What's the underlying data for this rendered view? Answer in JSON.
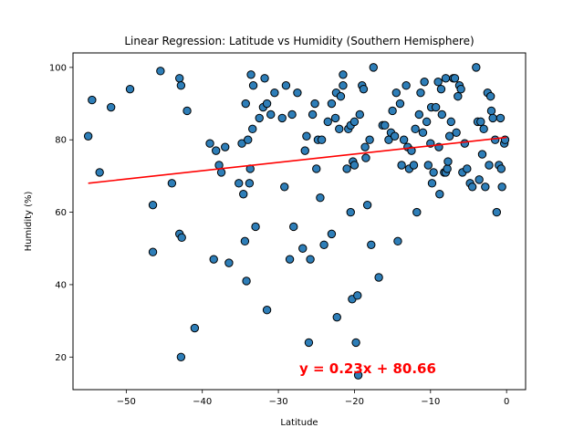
{
  "chart_data": {
    "type": "scatter",
    "title": "Linear Regression: Latitude vs Humidity (Southern Hemisphere)",
    "xlabel": "Latitude",
    "ylabel": "Humidity (%)",
    "xlim": [
      -57,
      2.5
    ],
    "ylim": [
      11,
      104
    ],
    "xticks": [
      -50,
      -40,
      -30,
      -20,
      -10,
      0
    ],
    "yticks": [
      20,
      40,
      60,
      80,
      100
    ],
    "grid": false,
    "point_color": "#2e7eb8",
    "point_edge_color": "#000000",
    "regression": {
      "slope": 0.23,
      "intercept": 80.66,
      "x_range": [
        -55,
        0
      ],
      "color": "#ff0000",
      "equation": "y = 0.23x + 80.66",
      "equation_color": "#ff0000"
    },
    "points": [
      [
        -55,
        81
      ],
      [
        -54.5,
        91
      ],
      [
        -53.5,
        71
      ],
      [
        -52,
        89
      ],
      [
        -49.5,
        94
      ],
      [
        -46.5,
        62
      ],
      [
        -46.5,
        49
      ],
      [
        -45.5,
        99
      ],
      [
        -44,
        68
      ],
      [
        -43,
        97
      ],
      [
        -43,
        54
      ],
      [
        -42.8,
        95
      ],
      [
        -42.7,
        53
      ],
      [
        -42.8,
        20
      ],
      [
        -42,
        88
      ],
      [
        -41,
        28
      ],
      [
        -39,
        79
      ],
      [
        -38.5,
        47
      ],
      [
        -38.2,
        77
      ],
      [
        -37.8,
        73
      ],
      [
        -37.5,
        71
      ],
      [
        -37,
        78
      ],
      [
        -36.5,
        46
      ],
      [
        -35.2,
        68
      ],
      [
        -34.8,
        79
      ],
      [
        -34.6,
        65
      ],
      [
        -34.4,
        52
      ],
      [
        -34.3,
        90
      ],
      [
        -34.2,
        41
      ],
      [
        -34,
        80
      ],
      [
        -33.8,
        68
      ],
      [
        -33.7,
        72
      ],
      [
        -33.6,
        98
      ],
      [
        -33.4,
        83
      ],
      [
        -33.3,
        95
      ],
      [
        -33,
        56
      ],
      [
        -32.5,
        86
      ],
      [
        -32,
        89
      ],
      [
        -31.8,
        97
      ],
      [
        -31.5,
        33
      ],
      [
        -31.5,
        90
      ],
      [
        -31,
        87
      ],
      [
        -30.5,
        93
      ],
      [
        -29.5,
        86
      ],
      [
        -29.2,
        67
      ],
      [
        -29,
        95
      ],
      [
        -28.5,
        47
      ],
      [
        -28.2,
        87
      ],
      [
        -28,
        56
      ],
      [
        -27.5,
        93
      ],
      [
        -26.8,
        50
      ],
      [
        -26.5,
        77
      ],
      [
        -26.3,
        81
      ],
      [
        -26,
        24
      ],
      [
        -25.8,
        47
      ],
      [
        -25.5,
        87
      ],
      [
        -25.2,
        90
      ],
      [
        -25,
        72
      ],
      [
        -24.8,
        80
      ],
      [
        -24.5,
        64
      ],
      [
        -24.3,
        80
      ],
      [
        -24,
        51
      ],
      [
        -23.5,
        85
      ],
      [
        -23,
        90
      ],
      [
        -23,
        54
      ],
      [
        -22.5,
        86
      ],
      [
        -22.4,
        93
      ],
      [
        -22.3,
        31
      ],
      [
        -22,
        83
      ],
      [
        -21.8,
        92
      ],
      [
        -21.5,
        95
      ],
      [
        -21.5,
        98
      ],
      [
        -21,
        72
      ],
      [
        -20.8,
        83
      ],
      [
        -20.5,
        60
      ],
      [
        -20.5,
        84
      ],
      [
        -20.3,
        36
      ],
      [
        -20.2,
        74
      ],
      [
        -20,
        73
      ],
      [
        -20,
        85
      ],
      [
        -19.8,
        24
      ],
      [
        -19.6,
        37
      ],
      [
        -19.5,
        15
      ],
      [
        -19.3,
        87
      ],
      [
        -19,
        95
      ],
      [
        -18.8,
        94
      ],
      [
        -18.6,
        78
      ],
      [
        -18.5,
        75
      ],
      [
        -18.3,
        62
      ],
      [
        -18,
        80
      ],
      [
        -17.8,
        51
      ],
      [
        -17.5,
        100
      ],
      [
        -16.8,
        42
      ],
      [
        -16.3,
        84
      ],
      [
        -16,
        84
      ],
      [
        -15.5,
        80
      ],
      [
        -15.2,
        82
      ],
      [
        -15,
        88
      ],
      [
        -14.7,
        81
      ],
      [
        -14.5,
        93
      ],
      [
        -14.3,
        52
      ],
      [
        -14,
        90
      ],
      [
        -13.8,
        73
      ],
      [
        -13.5,
        80
      ],
      [
        -13.2,
        95
      ],
      [
        -13,
        78
      ],
      [
        -12.8,
        72
      ],
      [
        -12.5,
        77
      ],
      [
        -12.2,
        73
      ],
      [
        -12,
        83
      ],
      [
        -11.8,
        60
      ],
      [
        -11.5,
        87
      ],
      [
        -11.3,
        93
      ],
      [
        -11,
        82
      ],
      [
        -10.8,
        96
      ],
      [
        -10.5,
        85
      ],
      [
        -10.3,
        73
      ],
      [
        -10,
        79
      ],
      [
        -9.9,
        89
      ],
      [
        -9.8,
        68
      ],
      [
        -9.6,
        71
      ],
      [
        -9.3,
        89
      ],
      [
        -9,
        96
      ],
      [
        -8.9,
        78
      ],
      [
        -8.8,
        65
      ],
      [
        -8.6,
        94
      ],
      [
        -8.5,
        87
      ],
      [
        -8.2,
        71
      ],
      [
        -8,
        97
      ],
      [
        -8,
        71
      ],
      [
        -7.8,
        72
      ],
      [
        -7.7,
        74
      ],
      [
        -7.5,
        81
      ],
      [
        -7.3,
        85
      ],
      [
        -7,
        97
      ],
      [
        -6.8,
        97
      ],
      [
        -6.6,
        82
      ],
      [
        -6.4,
        92
      ],
      [
        -6.2,
        95
      ],
      [
        -6,
        94
      ],
      [
        -5.8,
        71
      ],
      [
        -5.5,
        79
      ],
      [
        -5.2,
        72
      ],
      [
        -4.8,
        68
      ],
      [
        -4.5,
        67
      ],
      [
        -4,
        100
      ],
      [
        -3.8,
        85
      ],
      [
        -3.6,
        69
      ],
      [
        -3.4,
        85
      ],
      [
        -3.2,
        76
      ],
      [
        -3,
        83
      ],
      [
        -2.8,
        67
      ],
      [
        -2.5,
        93
      ],
      [
        -2.3,
        73
      ],
      [
        -2.1,
        92
      ],
      [
        -2,
        88
      ],
      [
        -1.8,
        86
      ],
      [
        -1.5,
        80
      ],
      [
        -1.3,
        60
      ],
      [
        -1,
        73
      ],
      [
        -0.8,
        86
      ],
      [
        -0.7,
        72
      ],
      [
        -0.6,
        67
      ],
      [
        -0.3,
        79
      ],
      [
        -0.2,
        80
      ]
    ]
  }
}
